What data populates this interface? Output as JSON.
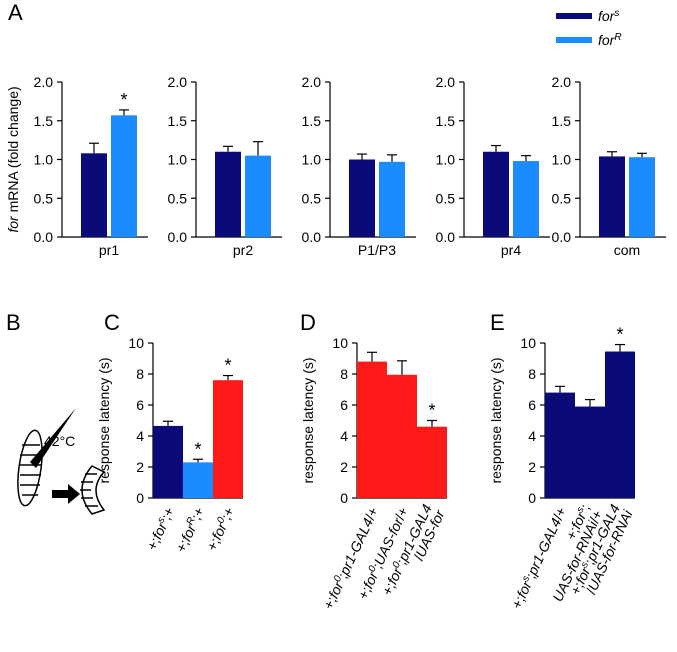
{
  "panel_labels": [
    "A",
    "B",
    "C",
    "D",
    "E"
  ],
  "legend": [
    {
      "name": "for",
      "sup": "s",
      "color": "#0a0a78"
    },
    {
      "name": "for",
      "sup": "R",
      "color": "#1a8cff"
    }
  ],
  "diagram_b": {
    "label": "42°C"
  },
  "chart_data": [
    {
      "type": "bar",
      "ylabel": [
        {
          "t": "for",
          "s": "i"
        },
        {
          "t": " mRNA (fold change)"
        }
      ],
      "categories": [
        "pr1"
      ],
      "series": [
        {
          "color": "#0a0a78",
          "values": [
            1.08
          ],
          "errors": [
            0.13
          ]
        },
        {
          "color": "#1a8cff",
          "values": [
            1.57
          ],
          "errors": [
            0.07
          ]
        }
      ],
      "stars": [
        {
          "series": 1,
          "index": 0,
          "text": "*"
        }
      ],
      "ylim": [
        0,
        2
      ],
      "yticks": [
        {
          "value": 0,
          "label": "0.0"
        },
        {
          "value": 0.5,
          "label": "0.5"
        },
        {
          "value": 1,
          "label": "1.0"
        },
        {
          "value": 1.5,
          "label": "1.5"
        },
        {
          "value": 2,
          "label": "2.0"
        }
      ]
    },
    {
      "type": "bar",
      "categories": [
        "pr2"
      ],
      "series": [
        {
          "color": "#0a0a78",
          "values": [
            1.1
          ],
          "errors": [
            0.07
          ]
        },
        {
          "color": "#1a8cff",
          "values": [
            1.05
          ],
          "errors": [
            0.18
          ]
        }
      ],
      "ylim": [
        0,
        2
      ],
      "yticks": [
        {
          "value": 0,
          "label": "0.0"
        },
        {
          "value": 0.5,
          "label": "0.5"
        },
        {
          "value": 1,
          "label": "1.0"
        },
        {
          "value": 1.5,
          "label": "1.5"
        },
        {
          "value": 2,
          "label": "2.0"
        }
      ]
    },
    {
      "type": "bar",
      "categories": [
        "P1/P3"
      ],
      "series": [
        {
          "color": "#0a0a78",
          "values": [
            1.0
          ],
          "errors": [
            0.07
          ]
        },
        {
          "color": "#1a8cff",
          "values": [
            0.97
          ],
          "errors": [
            0.09
          ]
        }
      ],
      "ylim": [
        0,
        2
      ],
      "yticks": [
        {
          "value": 0,
          "label": "0.0"
        },
        {
          "value": 0.5,
          "label": "0.5"
        },
        {
          "value": 1,
          "label": "1.0"
        },
        {
          "value": 1.5,
          "label": "1.5"
        },
        {
          "value": 2,
          "label": "2.0"
        }
      ]
    },
    {
      "type": "bar",
      "categories": [
        "pr4"
      ],
      "series": [
        {
          "color": "#0a0a78",
          "values": [
            1.1
          ],
          "errors": [
            0.08
          ]
        },
        {
          "color": "#1a8cff",
          "values": [
            0.98
          ],
          "errors": [
            0.07
          ]
        }
      ],
      "ylim": [
        0,
        2
      ],
      "yticks": [
        {
          "value": 0,
          "label": "0.0"
        },
        {
          "value": 0.5,
          "label": "0.5"
        },
        {
          "value": 1,
          "label": "1.0"
        },
        {
          "value": 1.5,
          "label": "1.5"
        },
        {
          "value": 2,
          "label": "2.0"
        }
      ]
    },
    {
      "type": "bar",
      "categories": [
        "com"
      ],
      "series": [
        {
          "color": "#0a0a78",
          "values": [
            1.04
          ],
          "errors": [
            0.06
          ]
        },
        {
          "color": "#1a8cff",
          "values": [
            1.03
          ],
          "errors": [
            0.05
          ]
        }
      ],
      "ylim": [
        0,
        2
      ],
      "yticks": [
        {
          "value": 0,
          "label": "0.0"
        },
        {
          "value": 0.5,
          "label": "0.5"
        },
        {
          "value": 1,
          "label": "1.0"
        },
        {
          "value": 1.5,
          "label": "1.5"
        },
        {
          "value": 2,
          "label": "2.0"
        }
      ]
    },
    {
      "type": "bar",
      "ylabel": [
        {
          "t": "response latency (s)"
        }
      ],
      "categories": [
        [
          [
            {
              "t": "+;"
            },
            {
              "t": "for",
              "s": "i"
            },
            {
              "t": "s",
              "s": "sup"
            },
            {
              "t": ";+"
            }
          ]
        ],
        [
          [
            {
              "t": "+;"
            },
            {
              "t": "for",
              "s": "i"
            },
            {
              "t": "R",
              "s": "sup"
            },
            {
              "t": ";+"
            }
          ]
        ],
        [
          [
            {
              "t": "+;"
            },
            {
              "t": "for",
              "s": "i"
            },
            {
              "t": "0",
              "s": "sup"
            },
            {
              "t": ";+"
            }
          ]
        ]
      ],
      "values": [
        4.65,
        2.3,
        7.6
      ],
      "errors": [
        0.3,
        0.2,
        0.3
      ],
      "colors": [
        "#0a0a78",
        "#1a8cff",
        "#ff1a1a"
      ],
      "stars": [
        {
          "index": 1,
          "text": "*"
        },
        {
          "index": 2,
          "text": "*"
        }
      ],
      "ylim": [
        0,
        10
      ],
      "yticks": [
        0,
        2,
        4,
        6,
        8,
        10
      ]
    },
    {
      "type": "bar",
      "ylabel": [
        {
          "t": "response latency (s)"
        }
      ],
      "categories": [
        [
          [
            {
              "t": "+;"
            },
            {
              "t": "for",
              "s": "i"
            },
            {
              "t": "0",
              "s": "sup"
            },
            {
              "t": ";"
            },
            {
              "t": "pr1-GAL4",
              "s": "i"
            },
            {
              "t": "/+"
            }
          ]
        ],
        [
          [
            {
              "t": "+;"
            },
            {
              "t": "for",
              "s": "i"
            },
            {
              "t": "0",
              "s": "sup"
            },
            {
              "t": ";"
            },
            {
              "t": "UAS-for",
              "s": "i"
            },
            {
              "t": "/+"
            }
          ]
        ],
        [
          [
            {
              "t": "+;"
            },
            {
              "t": "for",
              "s": "i"
            },
            {
              "t": "0",
              "s": "sup"
            },
            {
              "t": ";"
            },
            {
              "t": "pr1-GAL4",
              "s": "i"
            }
          ],
          [
            {
              "t": "/"
            },
            {
              "t": "UAS-for",
              "s": "i"
            }
          ]
        ]
      ],
      "values": [
        8.8,
        7.95,
        4.6
      ],
      "errors": [
        0.6,
        0.9,
        0.4
      ],
      "colors": [
        "#ff1a1a",
        "#ff1a1a",
        "#ff1a1a"
      ],
      "stars": [
        {
          "index": 2,
          "text": "*"
        }
      ],
      "ylim": [
        0,
        10
      ],
      "yticks": [
        0,
        2,
        4,
        6,
        8,
        10
      ]
    },
    {
      "type": "bar",
      "ylabel": [
        {
          "t": "response latency (s)"
        }
      ],
      "categories": [
        [
          [
            {
              "t": "+;"
            },
            {
              "t": "for",
              "s": "i"
            },
            {
              "t": "s",
              "s": "sup"
            },
            {
              "t": ";"
            },
            {
              "t": "pr1-GAL4",
              "s": "i"
            },
            {
              "t": "/+"
            }
          ]
        ],
        [
          [
            {
              "t": "+;"
            },
            {
              "t": "for",
              "s": "i"
            },
            {
              "t": "s",
              "s": "sup"
            },
            {
              "t": ";"
            }
          ],
          [
            {
              "t": "UAS-for-RNAi",
              "s": "i"
            },
            {
              "t": "/+"
            }
          ]
        ],
        [
          [
            {
              "t": "+;"
            },
            {
              "t": "for",
              "s": "i"
            },
            {
              "t": "s",
              "s": "sup"
            },
            {
              "t": ";"
            },
            {
              "t": "pr1-GAL4",
              "s": "i"
            }
          ],
          [
            {
              "t": "/"
            },
            {
              "t": "UAS-for-RNAi",
              "s": "i"
            }
          ]
        ]
      ],
      "values": [
        6.8,
        5.9,
        9.45
      ],
      "errors": [
        0.4,
        0.45,
        0.45
      ],
      "colors": [
        "#0a0a78",
        "#0a0a78",
        "#0a0a78"
      ],
      "stars": [
        {
          "index": 2,
          "text": "*"
        }
      ],
      "ylim": [
        0,
        10
      ],
      "yticks": [
        0,
        2,
        4,
        6,
        8,
        10
      ]
    }
  ]
}
